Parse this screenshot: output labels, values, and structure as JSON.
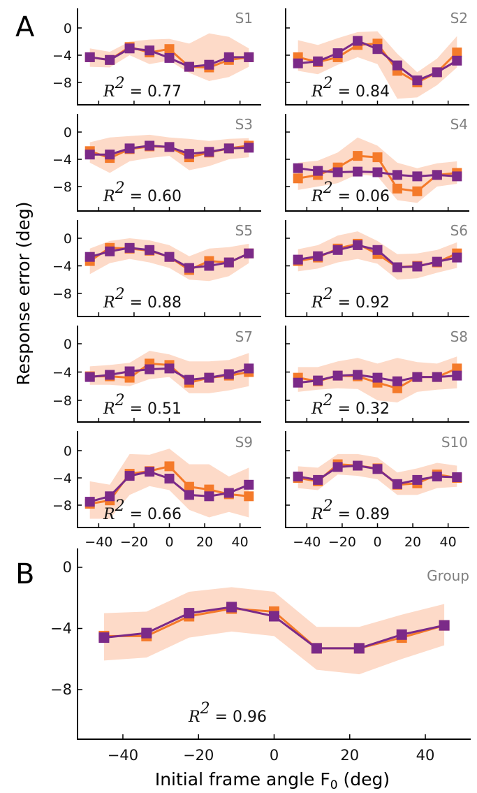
{
  "colors": {
    "data": "#f47a2a",
    "model": "#7b2a88",
    "band": "#fddac8",
    "subject_label": "#808080"
  },
  "panel_labels": [
    "A",
    "B"
  ],
  "ylabel": "Response error (deg)",
  "xlabel": "Initial frame angle F",
  "xlabel_sub": "0",
  "xlabel_unit": " (deg)",
  "r2_prefix": "R",
  "r2_exp": "2",
  "r2_eq": " = ",
  "chart_data": [
    {
      "type": "line",
      "title": "S1",
      "r2": "0.77",
      "x": [
        -45,
        -33.75,
        -22.5,
        -11.25,
        0,
        11.25,
        22.5,
        33.75,
        45
      ],
      "xlim": [
        -52,
        52
      ],
      "ylim": [
        -10.5,
        1
      ],
      "yticks": [
        "0",
        "−4",
        "−8"
      ],
      "ytick_values": [
        0,
        -4,
        -8
      ],
      "xticks": [],
      "xtick_values": [],
      "series": [
        {
          "role": "data",
          "values": [
            -4.3,
            -4.7,
            -2.8,
            -3.6,
            -3.1,
            -5.7,
            -5.8,
            -4.7,
            -4.3
          ]
        },
        {
          "role": "model",
          "values": [
            -4.3,
            -4.7,
            -3.0,
            -3.3,
            -4.4,
            -5.7,
            -5.4,
            -4.3,
            -4.3
          ]
        }
      ],
      "band_upper": [
        -3.0,
        -3.5,
        -2.0,
        -1.7,
        -1.6,
        -2.3,
        -0.8,
        -1.3,
        -3.0
      ],
      "band_lower": [
        -5.7,
        -5.8,
        -4.0,
        -5.3,
        -4.8,
        -6.6,
        -7.8,
        -7.2,
        -5.7
      ]
    },
    {
      "type": "line",
      "title": "S2",
      "r2": "0.84",
      "x": [
        -45,
        -33.75,
        -22.5,
        -11.25,
        0,
        11.25,
        22.5,
        33.75,
        45
      ],
      "xlim": [
        -52,
        52
      ],
      "ylim": [
        -10.5,
        1
      ],
      "yticks": [],
      "ytick_values": [
        0,
        -4,
        -8
      ],
      "xticks": [],
      "xtick_values": [],
      "series": [
        {
          "role": "data",
          "values": [
            -4.3,
            -5.0,
            -4.3,
            -2.5,
            -2.3,
            -6.3,
            -8.0,
            -6.5,
            -3.6
          ]
        },
        {
          "role": "model",
          "values": [
            -5.2,
            -4.9,
            -3.7,
            -1.9,
            -3.1,
            -5.5,
            -7.7,
            -6.5,
            -4.8
          ]
        }
      ],
      "band_upper": [
        -1.8,
        -2.5,
        -1.5,
        -0.6,
        -0.5,
        -3.8,
        -6.5,
        -4.5,
        -1.2
      ],
      "band_lower": [
        -6.3,
        -6.8,
        -5.4,
        -4.3,
        -5.3,
        -10.4,
        -10.2,
        -8.4,
        -5.8
      ]
    },
    {
      "type": "line",
      "title": "S3",
      "r2": "0.60",
      "x": [
        -45,
        -33.75,
        -22.5,
        -11.25,
        0,
        11.25,
        22.5,
        33.75,
        45
      ],
      "xlim": [
        -52,
        52
      ],
      "ylim": [
        -10.5,
        1
      ],
      "yticks": [
        "0",
        "−4",
        "−8"
      ],
      "ytick_values": [
        0,
        -4,
        -8
      ],
      "xticks": [],
      "xtick_values": [],
      "series": [
        {
          "role": "data",
          "values": [
            -2.8,
            -3.8,
            -2.5,
            -2.1,
            -2.2,
            -3.7,
            -3.0,
            -2.4,
            -2.0
          ]
        },
        {
          "role": "model",
          "values": [
            -3.3,
            -3.3,
            -2.4,
            -2.0,
            -2.2,
            -3.2,
            -2.9,
            -2.4,
            -2.3
          ]
        }
      ],
      "band_upper": [
        -1.5,
        -0.8,
        -0.6,
        -0.4,
        -0.8,
        -1.0,
        -1.3,
        -1.0,
        -0.9
      ],
      "band_lower": [
        -4.5,
        -6.0,
        -4.3,
        -3.8,
        -3.5,
        -5.6,
        -5.0,
        -4.0,
        -3.7
      ]
    },
    {
      "type": "line",
      "title": "S4",
      "r2": "0.06",
      "x": [
        -45,
        -33.75,
        -22.5,
        -11.25,
        0,
        11.25,
        22.5,
        33.75,
        45
      ],
      "xlim": [
        -52,
        52
      ],
      "ylim": [
        -10.5,
        1
      ],
      "yticks": [],
      "ytick_values": [
        0,
        -4,
        -8
      ],
      "xticks": [],
      "xtick_values": [],
      "series": [
        {
          "role": "data",
          "values": [
            -6.8,
            -6.3,
            -5.2,
            -3.5,
            -3.7,
            -8.3,
            -8.7,
            -6.3,
            -6.0
          ]
        },
        {
          "role": "model",
          "values": [
            -5.3,
            -5.7,
            -5.9,
            -5.8,
            -5.9,
            -6.3,
            -6.5,
            -6.3,
            -6.5
          ]
        }
      ],
      "band_upper": [
        -4.5,
        -4.2,
        -3.0,
        -0.8,
        -2.0,
        -4.5,
        -5.3,
        -4.6,
        -4.3
      ],
      "band_lower": [
        -8.5,
        -8.0,
        -7.5,
        -6.2,
        -6.5,
        -10.0,
        -10.4,
        -8.0,
        -7.6
      ]
    },
    {
      "type": "line",
      "title": "S5",
      "r2": "0.88",
      "x": [
        -45,
        -33.75,
        -22.5,
        -11.25,
        0,
        11.25,
        22.5,
        33.75,
        45
      ],
      "xlim": [
        -52,
        52
      ],
      "ylim": [
        -10.5,
        1
      ],
      "yticks": [
        "0",
        "−4",
        "−8"
      ],
      "ytick_values": [
        0,
        -4,
        -8
      ],
      "xticks": [],
      "xtick_values": [],
      "series": [
        {
          "role": "data",
          "values": [
            -3.3,
            -1.4,
            -1.5,
            -1.8,
            -2.7,
            -4.6,
            -3.3,
            -3.5,
            -2.2
          ]
        },
        {
          "role": "model",
          "values": [
            -2.7,
            -1.9,
            -1.4,
            -1.7,
            -2.7,
            -4.3,
            -4.0,
            -3.5,
            -2.2
          ]
        }
      ],
      "band_upper": [
        -1.5,
        -0.4,
        0.0,
        -0.3,
        -1.0,
        -2.6,
        -1.5,
        -1.3,
        -0.8
      ],
      "band_lower": [
        -5.2,
        -3.6,
        -3.0,
        -3.5,
        -4.3,
        -6.0,
        -6.2,
        -5.5,
        -3.6
      ]
    },
    {
      "type": "line",
      "title": "S6",
      "r2": "0.92",
      "x": [
        -45,
        -33.75,
        -22.5,
        -11.25,
        0,
        11.25,
        22.5,
        33.75,
        45
      ],
      "xlim": [
        -52,
        52
      ],
      "ylim": [
        -10.5,
        1
      ],
      "yticks": [],
      "ytick_values": [
        0,
        -4,
        -8
      ],
      "xticks": [],
      "xtick_values": [],
      "series": [
        {
          "role": "data",
          "values": [
            -3.3,
            -2.8,
            -1.5,
            -0.8,
            -2.3,
            -4.2,
            -4.0,
            -3.5,
            -2.2
          ]
        },
        {
          "role": "model",
          "values": [
            -3.1,
            -2.6,
            -1.7,
            -1.0,
            -1.7,
            -4.2,
            -4.1,
            -3.4,
            -2.8
          ]
        }
      ],
      "band_upper": [
        -1.6,
        -1.0,
        0.4,
        1.0,
        -0.4,
        -2.3,
        -2.2,
        -1.7,
        -0.6
      ],
      "band_lower": [
        -4.8,
        -4.4,
        -3.5,
        -3.0,
        -3.7,
        -6.0,
        -5.8,
        -5.0,
        -4.3
      ]
    },
    {
      "type": "line",
      "title": "S7",
      "r2": "0.51",
      "x": [
        -45,
        -33.75,
        -22.5,
        -11.25,
        0,
        11.25,
        22.5,
        33.75,
        45
      ],
      "xlim": [
        -52,
        52
      ],
      "ylim": [
        -10.5,
        1
      ],
      "yticks": [
        "0",
        "−4",
        "−8"
      ],
      "ytick_values": [
        0,
        -4,
        -8
      ],
      "xticks": [],
      "xtick_values": [],
      "series": [
        {
          "role": "data",
          "values": [
            -4.6,
            -4.6,
            -4.8,
            -2.8,
            -3.0,
            -5.5,
            -4.8,
            -4.5,
            -4.0
          ]
        },
        {
          "role": "model",
          "values": [
            -4.7,
            -4.4,
            -3.9,
            -3.6,
            -3.5,
            -5.1,
            -4.8,
            -4.3,
            -3.5
          ]
        }
      ],
      "band_upper": [
        -3.2,
        -3.0,
        -2.7,
        -1.0,
        -1.5,
        -2.5,
        -2.5,
        -2.3,
        -1.3
      ],
      "band_lower": [
        -5.8,
        -5.8,
        -6.0,
        -5.0,
        -4.7,
        -7.0,
        -7.0,
        -6.6,
        -6.0
      ]
    },
    {
      "type": "line",
      "title": "S8",
      "r2": "0.32",
      "x": [
        -45,
        -33.75,
        -22.5,
        -11.25,
        0,
        11.25,
        22.5,
        33.75,
        45
      ],
      "xlim": [
        -52,
        52
      ],
      "ylim": [
        -10.5,
        1
      ],
      "yticks": [],
      "ytick_values": [
        0,
        -4,
        -8
      ],
      "xticks": [],
      "xtick_values": [],
      "series": [
        {
          "role": "data",
          "values": [
            -4.8,
            -5.3,
            -4.5,
            -4.6,
            -5.5,
            -6.3,
            -4.7,
            -4.7,
            -3.5
          ]
        },
        {
          "role": "model",
          "values": [
            -5.5,
            -5.2,
            -4.5,
            -4.4,
            -4.8,
            -5.3,
            -4.7,
            -4.7,
            -4.5
          ]
        }
      ],
      "band_upper": [
        -3.3,
        -3.3,
        -2.5,
        -2.0,
        -2.8,
        -2.0,
        -2.6,
        -2.8,
        -1.8
      ],
      "band_lower": [
        -6.8,
        -6.5,
        -6.3,
        -6.4,
        -8.0,
        -8.3,
        -6.8,
        -6.5,
        -6.3
      ]
    },
    {
      "type": "line",
      "title": "S9",
      "r2": "0.66",
      "x": [
        -45,
        -33.75,
        -22.5,
        -11.25,
        0,
        11.25,
        22.5,
        33.75,
        45
      ],
      "xlim": [
        -52,
        52
      ],
      "ylim": [
        -10.5,
        1
      ],
      "yticks": [
        "0",
        "−4",
        "−8"
      ],
      "ytick_values": [
        0,
        -4,
        -8
      ],
      "xticks": [
        "−40",
        "−20",
        "0",
        "20",
        "40"
      ],
      "xtick_values": [
        -40,
        -20,
        0,
        20,
        40
      ],
      "series": [
        {
          "role": "data",
          "values": [
            -7.8,
            -7.3,
            -3.4,
            -3.0,
            -2.3,
            -5.3,
            -5.7,
            -6.4,
            -6.7
          ]
        },
        {
          "role": "model",
          "values": [
            -7.5,
            -6.7,
            -3.7,
            -3.1,
            -4.1,
            -6.5,
            -6.7,
            -6.2,
            -5.0
          ]
        }
      ],
      "band_upper": [
        -4.5,
        -5.0,
        -0.5,
        -0.6,
        0.3,
        -2.0,
        -2.0,
        -3.8,
        -2.5
      ],
      "band_lower": [
        -10.0,
        -10.0,
        -6.5,
        -5.2,
        -5.8,
        -8.7,
        -9.8,
        -9.0,
        -9.8
      ]
    },
    {
      "type": "line",
      "title": "S10",
      "r2": "0.89",
      "x": [
        -45,
        -33.75,
        -22.5,
        -11.25,
        0,
        11.25,
        22.5,
        33.75,
        45
      ],
      "xlim": [
        -52,
        52
      ],
      "ylim": [
        -10.5,
        1
      ],
      "yticks": [],
      "ytick_values": [
        0,
        -4,
        -8
      ],
      "xticks": [
        "−40",
        "−20",
        "0",
        "20",
        "40"
      ],
      "xtick_values": [
        -40,
        -20,
        0,
        20,
        40
      ],
      "series": [
        {
          "role": "data",
          "values": [
            -4.0,
            -4.5,
            -2.0,
            -2.2,
            -2.6,
            -5.0,
            -4.8,
            -3.5,
            -4.0
          ]
        },
        {
          "role": "model",
          "values": [
            -3.8,
            -4.3,
            -2.4,
            -2.2,
            -2.7,
            -4.9,
            -4.3,
            -3.8,
            -3.9
          ]
        }
      ],
      "band_upper": [
        -2.3,
        -2.5,
        -0.5,
        -0.5,
        -1.0,
        -3.2,
        -2.6,
        -1.8,
        -2.2
      ],
      "band_lower": [
        -5.5,
        -5.8,
        -3.5,
        -3.7,
        -4.2,
        -6.5,
        -6.5,
        -5.5,
        -5.3
      ]
    },
    {
      "type": "line",
      "title": "Group",
      "r2": "0.96",
      "x": [
        -45,
        -33.75,
        -22.5,
        -11.25,
        0,
        11.25,
        22.5,
        33.75,
        45
      ],
      "xlim": [
        -52,
        52
      ],
      "ylim": [
        -11,
        1
      ],
      "yticks": [
        "0",
        "−4",
        "−8"
      ],
      "ytick_values": [
        0,
        -4,
        -8
      ],
      "xticks": [
        "−40",
        "−20",
        "0",
        "20",
        "40"
      ],
      "xtick_values": [
        -40,
        -20,
        0,
        20,
        40
      ],
      "series": [
        {
          "role": "data",
          "values": [
            -4.5,
            -4.5,
            -3.2,
            -2.7,
            -2.9,
            -5.3,
            -5.3,
            -4.6,
            -3.8
          ]
        },
        {
          "role": "model",
          "values": [
            -4.6,
            -4.3,
            -3.0,
            -2.6,
            -3.2,
            -5.3,
            -5.3,
            -4.4,
            -3.8
          ]
        }
      ],
      "band_upper": [
        -3.0,
        -2.9,
        -1.6,
        -1.3,
        -1.6,
        -3.9,
        -3.9,
        -3.1,
        -2.4
      ],
      "band_lower": [
        -6.1,
        -5.9,
        -4.6,
        -4.2,
        -4.5,
        -6.7,
        -7.0,
        -6.0,
        -5.1
      ]
    }
  ]
}
